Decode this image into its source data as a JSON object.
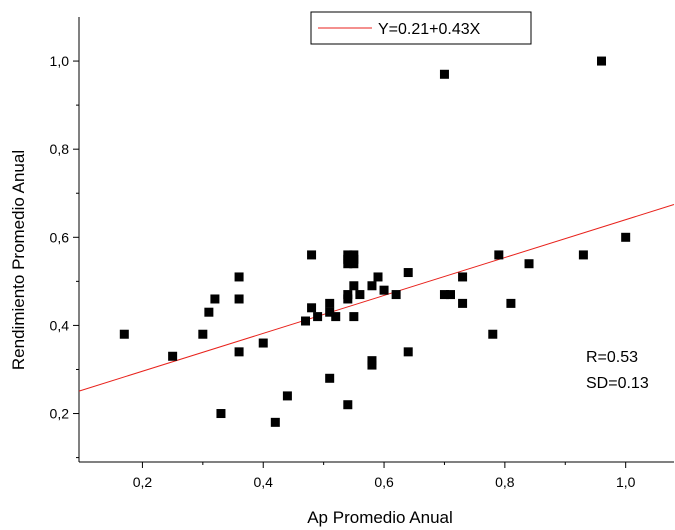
{
  "chart_data": {
    "type": "scatter",
    "xlabel": "Ap Promedio Anual",
    "ylabel": "Rendimiento Promedio Anual",
    "xlim": [
      0.095,
      1.08
    ],
    "ylim": [
      0.09,
      1.1
    ],
    "x_ticks": [
      {
        "value": 0.2,
        "label": "0,2"
      },
      {
        "value": 0.4,
        "label": "0,4"
      },
      {
        "value": 0.6,
        "label": "0,6"
      },
      {
        "value": 0.8,
        "label": "0,8"
      },
      {
        "value": 1.0,
        "label": "1,0"
      }
    ],
    "y_ticks": [
      {
        "value": 0.2,
        "label": "0,2"
      },
      {
        "value": 0.4,
        "label": "0,4"
      },
      {
        "value": 0.6,
        "label": "0,6"
      },
      {
        "value": 0.8,
        "label": "0,8"
      },
      {
        "value": 1.0,
        "label": "1,0"
      }
    ],
    "series": [
      {
        "marker": "square",
        "color": "#000000",
        "points": [
          [
            0.17,
            0.38
          ],
          [
            0.25,
            0.33
          ],
          [
            0.3,
            0.38
          ],
          [
            0.31,
            0.43
          ],
          [
            0.32,
            0.46
          ],
          [
            0.33,
            0.2
          ],
          [
            0.36,
            0.51
          ],
          [
            0.36,
            0.46
          ],
          [
            0.36,
            0.34
          ],
          [
            0.4,
            0.36
          ],
          [
            0.42,
            0.18
          ],
          [
            0.44,
            0.24
          ],
          [
            0.47,
            0.41
          ],
          [
            0.48,
            0.56
          ],
          [
            0.48,
            0.44
          ],
          [
            0.49,
            0.42
          ],
          [
            0.51,
            0.45
          ],
          [
            0.51,
            0.43
          ],
          [
            0.51,
            0.28
          ],
          [
            0.52,
            0.42
          ],
          [
            0.54,
            0.56
          ],
          [
            0.54,
            0.55
          ],
          [
            0.54,
            0.54
          ],
          [
            0.55,
            0.56
          ],
          [
            0.55,
            0.55
          ],
          [
            0.55,
            0.54
          ],
          [
            0.54,
            0.47
          ],
          [
            0.54,
            0.46
          ],
          [
            0.55,
            0.49
          ],
          [
            0.56,
            0.47
          ],
          [
            0.55,
            0.42
          ],
          [
            0.54,
            0.22
          ],
          [
            0.58,
            0.49
          ],
          [
            0.59,
            0.51
          ],
          [
            0.6,
            0.48
          ],
          [
            0.58,
            0.32
          ],
          [
            0.58,
            0.31
          ],
          [
            0.62,
            0.47
          ],
          [
            0.64,
            0.52
          ],
          [
            0.64,
            0.34
          ],
          [
            0.7,
            0.47
          ],
          [
            0.71,
            0.47
          ],
          [
            0.73,
            0.51
          ],
          [
            0.73,
            0.45
          ],
          [
            0.7,
            0.97
          ],
          [
            0.78,
            0.38
          ],
          [
            0.79,
            0.56
          ],
          [
            0.81,
            0.45
          ],
          [
            0.84,
            0.54
          ],
          [
            0.93,
            0.56
          ],
          [
            0.96,
            1.0
          ],
          [
            1.0,
            0.6
          ]
        ]
      }
    ],
    "fit_line": {
      "intercept": 0.21,
      "slope": 0.43,
      "color": "#e8221c",
      "label": "Y=0.21+0.43X"
    },
    "legend_position": "top-center",
    "annotations": [
      "R=0.53",
      "SD=0.13"
    ],
    "grid": false
  }
}
